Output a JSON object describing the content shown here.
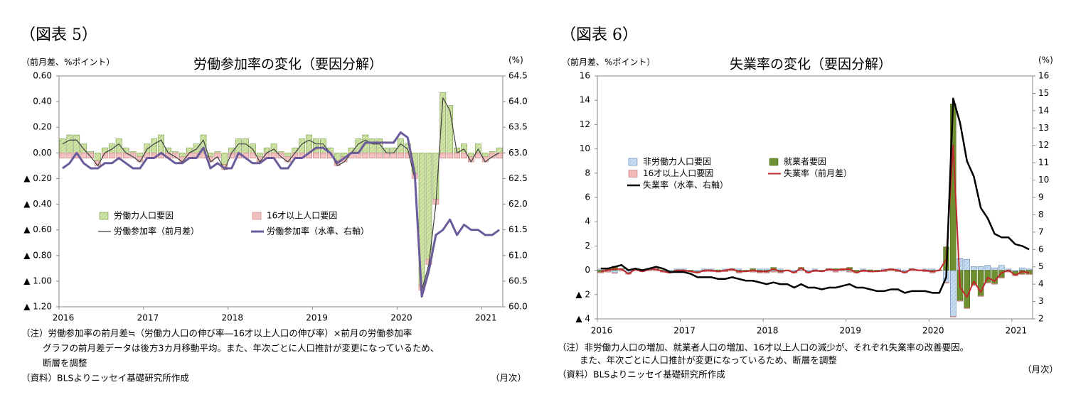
{
  "chart_data": [
    {
      "type": "combo",
      "figure_label": "（図表 5）",
      "title": "労働参加率の変化（要因分解）",
      "y_unit": "（前月差、%ポイント）",
      "y2_unit": "(%)",
      "x_unit": "（月次）",
      "notes": [
        "（注）労働参加率の前月差≒（労働力人口の伸び率―16才以上人口の伸び率）×前月の労働参加率",
        "グラフの前月差データは後方3カ月移動平均。また、年次ごとに人口推計が変更になっているため、",
        "断層を調整"
      ],
      "source": "（資料）BLSよりニッセイ基礎研究所作成",
      "categories": [
        "2016",
        null,
        null,
        null,
        null,
        null,
        null,
        null,
        null,
        null,
        null,
        null,
        "2017",
        null,
        null,
        null,
        null,
        null,
        null,
        null,
        null,
        null,
        null,
        null,
        "2018",
        null,
        null,
        null,
        null,
        null,
        null,
        null,
        null,
        null,
        null,
        null,
        "2019",
        null,
        null,
        null,
        null,
        null,
        null,
        null,
        null,
        null,
        null,
        null,
        "2020",
        null,
        null,
        null,
        null,
        null,
        null,
        null,
        null,
        null,
        null,
        null,
        "2021",
        null,
        null
      ],
      "ylim": [
        -1.2,
        0.6
      ],
      "yticks": [
        {
          "value": 0.6,
          "label": "0.60"
        },
        {
          "value": 0.4,
          "label": "0.40"
        },
        {
          "value": 0.2,
          "label": "0.20"
        },
        {
          "value": 0,
          "label": "0.00"
        },
        {
          "value": -0.2,
          "label": "▲ 0.20"
        },
        {
          "value": -0.4,
          "label": "▲ 0.40"
        },
        {
          "value": -0.6,
          "label": "▲ 0.60"
        },
        {
          "value": -0.8,
          "label": "▲ 0.80"
        },
        {
          "value": -1.0,
          "label": "▲ 1.00"
        },
        {
          "value": -1.2,
          "label": "▲ 1.20"
        }
      ],
      "y2lim": [
        60,
        64.5
      ],
      "y2ticks": [
        64.5,
        {
          "value": 64,
          "label": "64.0"
        },
        63.5,
        {
          "value": 63,
          "label": "63.0"
        },
        62.5,
        {
          "value": 62,
          "label": "62.0"
        },
        61.5,
        {
          "value": 61,
          "label": "61.0"
        },
        60.5,
        {
          "value": 60,
          "label": "60.0"
        }
      ],
      "series": [
        {
          "name": "労働力人口要因",
          "mark": "bar",
          "color": "#cfe3a6",
          "stroke": "#6f9a3c",
          "hatch": true,
          "values": [
            0.11,
            0.14,
            0.14,
            0.07,
            0.01,
            -0.06,
            0.04,
            0.07,
            0.11,
            0.04,
            0.01,
            -0.03,
            0.07,
            0.11,
            0.14,
            0.04,
            0.01,
            -0.03,
            0.04,
            0.07,
            0.14,
            -0.03,
            0.01,
            -0.09,
            0.04,
            0.11,
            0.11,
            0.07,
            -0.03,
            0.04,
            0.07,
            0.01,
            -0.03,
            0.04,
            0.11,
            0.14,
            0.11,
            0.11,
            0.04,
            -0.06,
            -0.03,
            0.04,
            0.11,
            0.14,
            0.11,
            0.11,
            0.04,
            0.04,
            0.11,
            0.07,
            -0.16,
            -1.03,
            -0.83,
            -0.36,
            0.47,
            0.37,
            0.04,
            0.07,
            -0.03,
            0.07,
            -0.03,
            0.01,
            0.04
          ]
        },
        {
          "name": "16才以上人口要因",
          "mark": "bar",
          "color": "#f4c0c0",
          "stroke": "#c07878",
          "hatch": false,
          "values": [
            -0.04,
            -0.04,
            -0.04,
            -0.04,
            -0.04,
            -0.04,
            -0.04,
            -0.04,
            -0.04,
            -0.04,
            -0.04,
            -0.04,
            -0.04,
            -0.04,
            -0.04,
            -0.04,
            -0.04,
            -0.04,
            -0.04,
            -0.04,
            -0.04,
            -0.04,
            -0.04,
            -0.04,
            -0.04,
            -0.04,
            -0.04,
            -0.04,
            -0.04,
            -0.04,
            -0.04,
            -0.04,
            -0.04,
            -0.04,
            -0.04,
            -0.04,
            -0.04,
            -0.04,
            -0.04,
            -0.04,
            -0.04,
            -0.04,
            -0.04,
            -0.04,
            -0.04,
            -0.04,
            -0.04,
            -0.04,
            -0.04,
            -0.04,
            -0.04,
            -0.04,
            -0.04,
            -0.04,
            -0.04,
            -0.04,
            -0.04,
            -0.04,
            -0.04,
            -0.04,
            -0.04,
            -0.04,
            -0.04
          ]
        },
        {
          "name": "労働参加率（前月差）",
          "mark": "line",
          "color": "#404040",
          "width": 1.2,
          "values": [
            0.07,
            0.1,
            0.1,
            0.03,
            -0.03,
            -0.1,
            0.0,
            0.03,
            0.07,
            0.0,
            -0.03,
            -0.07,
            0.03,
            0.07,
            0.1,
            0.0,
            -0.03,
            -0.07,
            0.0,
            0.03,
            0.1,
            -0.07,
            -0.03,
            -0.13,
            0.0,
            0.07,
            0.07,
            0.03,
            -0.07,
            0.0,
            0.03,
            -0.03,
            -0.07,
            0.0,
            0.07,
            0.1,
            0.07,
            0.07,
            0.0,
            -0.1,
            -0.07,
            0.0,
            0.07,
            0.1,
            0.07,
            0.07,
            0.0,
            0.0,
            0.07,
            0.03,
            -0.2,
            -1.07,
            -0.87,
            -0.4,
            0.43,
            0.33,
            0.0,
            0.03,
            -0.07,
            0.03,
            -0.07,
            -0.03,
            0.0
          ]
        },
        {
          "name": "労働参加率（水準、右軸）",
          "mark": "line",
          "axis": "y2",
          "color": "#6b5b9a",
          "width": 3,
          "values": [
            62.7,
            62.8,
            63.0,
            62.8,
            62.7,
            62.7,
            62.8,
            62.8,
            62.9,
            62.8,
            62.7,
            62.7,
            62.9,
            62.9,
            63.0,
            62.9,
            62.8,
            62.8,
            62.9,
            62.9,
            63.1,
            62.7,
            62.8,
            62.7,
            62.7,
            63.0,
            62.9,
            62.8,
            62.8,
            62.9,
            62.9,
            62.7,
            62.7,
            62.9,
            62.9,
            63.0,
            63.1,
            63.1,
            63.0,
            62.8,
            62.9,
            63.0,
            63.0,
            63.2,
            63.2,
            63.2,
            63.2,
            63.2,
            63.4,
            63.3,
            62.6,
            60.2,
            60.7,
            61.4,
            61.5,
            61.7,
            61.4,
            61.6,
            61.5,
            61.5,
            61.4,
            61.4,
            61.5
          ]
        }
      ]
    },
    {
      "type": "combo",
      "figure_label": "（図表 6）",
      "title": "失業率の変化（要因分解）",
      "y_unit": "（前月差、%ポイント）",
      "y2_unit": "(%)",
      "x_unit": "（月次）",
      "notes": [
        "（注）非労働力人口の増加、就業者人口の増加、16才以上人口の減少が、それぞれ失業率の改善要因。",
        "また、年次ごとに人口推計が変更になっているため、断層を調整"
      ],
      "source": "（資料）BLSよりニッセイ基礎研究所作成",
      "categories": [
        "2016",
        null,
        null,
        null,
        null,
        null,
        null,
        null,
        null,
        null,
        null,
        null,
        "2017",
        null,
        null,
        null,
        null,
        null,
        null,
        null,
        null,
        null,
        null,
        null,
        "2018",
        null,
        null,
        null,
        null,
        null,
        null,
        null,
        null,
        null,
        null,
        null,
        "2019",
        null,
        null,
        null,
        null,
        null,
        null,
        null,
        null,
        null,
        null,
        null,
        "2020",
        null,
        null,
        null,
        null,
        null,
        null,
        null,
        null,
        null,
        null,
        null,
        "2021",
        null,
        null
      ],
      "ylim": [
        -4,
        16
      ],
      "yticks": [
        16,
        14,
        12,
        10,
        8,
        6,
        4,
        2,
        0,
        {
          "value": -2,
          "label": "▲ 2"
        },
        {
          "value": -4,
          "label": "▲ 4"
        }
      ],
      "y2lim": [
        2,
        16
      ],
      "y2ticks": [
        16,
        15,
        14,
        13,
        12,
        11,
        10,
        9,
        8,
        7,
        6,
        5,
        4,
        3,
        2
      ],
      "series": [
        {
          "name": "非労働力人口要因",
          "mark": "bar",
          "color": "#c9dcf2",
          "stroke": "#5a82b4",
          "hatch": true,
          "values": [
            0.1,
            -0.1,
            -0.2,
            0.1,
            -0.2,
            0.1,
            0,
            0.1,
            0.1,
            -0.1,
            -0.1,
            0.1,
            0.1,
            0,
            -0.1,
            0.1,
            0.1,
            -0.1,
            0.1,
            0,
            0.1,
            0,
            -0.1,
            0.1,
            0.1,
            -0.1,
            0.1,
            0,
            -0.1,
            0.1,
            -0.1,
            0.1,
            0,
            0.1,
            -0.1,
            0,
            -0.1,
            0,
            0.1,
            -0.1,
            0,
            0.1,
            0,
            0.1,
            -0.1,
            0.1,
            0,
            0.1,
            0.1,
            0,
            -1.0,
            -3.8,
            1.0,
            0.9,
            0.3,
            0.3,
            0.4,
            0.2,
            0.4,
            0.1,
            -0.1,
            0.2,
            0.1
          ]
        },
        {
          "name": "就業者要因",
          "mark": "bar",
          "color": "#6e8f2f",
          "stroke": "#55701f",
          "hatch": false,
          "values": [
            -0.17,
            0.13,
            0.33,
            0.03,
            -0.07,
            0.03,
            -0.07,
            0.03,
            0.03,
            0.03,
            -0.07,
            -0.07,
            -0.07,
            -0.07,
            -0.07,
            -0.07,
            -0.07,
            0.03,
            -0.07,
            0.13,
            -0.17,
            -0.07,
            0.13,
            -0.17,
            -0.17,
            0.23,
            -0.17,
            0.03,
            -0.07,
            0.13,
            -0.07,
            -0.07,
            -0.07,
            0.03,
            0.13,
            0.13,
            0.23,
            -0.17,
            -0.07,
            0.03,
            -0.07,
            -0.07,
            0.13,
            -0.07,
            -0.07,
            0.03,
            0.03,
            -0.07,
            -0.17,
            0.03,
            1.93,
            13.7,
            -2.5,
            -3.1,
            -1.2,
            -2.1,
            -1.0,
            -1.1,
            -0.6,
            -0.1,
            -0.3,
            -0.3,
            -0.3
          ]
        },
        {
          "name": "16才以上人口要因",
          "mark": "bar",
          "color": "#f2b8b8",
          "stroke": "#c07878",
          "hatch": false,
          "values": [
            -0.05,
            -0.05,
            -0.05,
            -0.05,
            -0.05,
            -0.05,
            -0.05,
            -0.05,
            -0.05,
            -0.05,
            -0.05,
            -0.05,
            -0.05,
            -0.05,
            -0.05,
            -0.05,
            -0.05,
            -0.05,
            -0.05,
            -0.05,
            -0.05,
            -0.05,
            -0.05,
            -0.05,
            -0.05,
            -0.05,
            -0.05,
            -0.05,
            -0.05,
            -0.05,
            -0.05,
            -0.05,
            -0.05,
            -0.05,
            -0.05,
            -0.05,
            -0.05,
            -0.05,
            -0.05,
            -0.05,
            -0.05,
            -0.05,
            -0.05,
            -0.05,
            -0.05,
            -0.05,
            -0.05,
            -0.05,
            -0.05,
            -0.05,
            -0.05,
            -0.05,
            -0.05,
            -0.05,
            -0.05,
            -0.05,
            -0.05,
            -0.05,
            -0.05,
            -0.05,
            -0.05,
            -0.05,
            -0.05
          ]
        },
        {
          "name": "失業率（前月差）",
          "mark": "line",
          "color": "#c0282d",
          "width": 2,
          "values": [
            -0.1,
            0,
            0.1,
            0.1,
            -0.3,
            0.1,
            -0.1,
            0.1,
            0.1,
            -0.1,
            -0.2,
            0,
            0,
            -0.1,
            -0.2,
            0,
            0,
            -0.1,
            0,
            0.1,
            -0.1,
            -0.1,
            0,
            -0.1,
            -0.1,
            0.1,
            -0.1,
            0,
            -0.2,
            0.2,
            -0.2,
            0,
            -0.1,
            0.1,
            0,
            0.1,
            0.1,
            -0.2,
            0,
            -0.1,
            -0.1,
            0,
            0.1,
            0,
            -0.2,
            0.1,
            0,
            0,
            -0.1,
            0,
            0.9,
            10.3,
            -1.4,
            -2.2,
            -0.9,
            -1.8,
            -0.6,
            -0.9,
            -0.2,
            0,
            -0.4,
            -0.1,
            -0.2
          ]
        },
        {
          "name": "失業率（水準、右軸）",
          "mark": "line",
          "axis": "y2",
          "color": "#000000",
          "width": 2.5,
          "values": [
            4.9,
            4.9,
            5.0,
            5.1,
            4.8,
            4.9,
            4.8,
            4.9,
            5.0,
            4.9,
            4.7,
            4.7,
            4.7,
            4.6,
            4.4,
            4.4,
            4.4,
            4.3,
            4.3,
            4.4,
            4.3,
            4.2,
            4.2,
            4.1,
            4.0,
            4.1,
            4.0,
            4.0,
            3.8,
            4.0,
            3.8,
            3.8,
            3.7,
            3.8,
            3.8,
            3.9,
            4.0,
            3.8,
            3.8,
            3.7,
            3.6,
            3.6,
            3.7,
            3.7,
            3.5,
            3.6,
            3.6,
            3.6,
            3.5,
            3.5,
            4.4,
            14.7,
            13.3,
            11.1,
            10.2,
            8.4,
            7.8,
            6.9,
            6.7,
            6.7,
            6.3,
            6.2,
            6.0
          ]
        }
      ]
    }
  ]
}
